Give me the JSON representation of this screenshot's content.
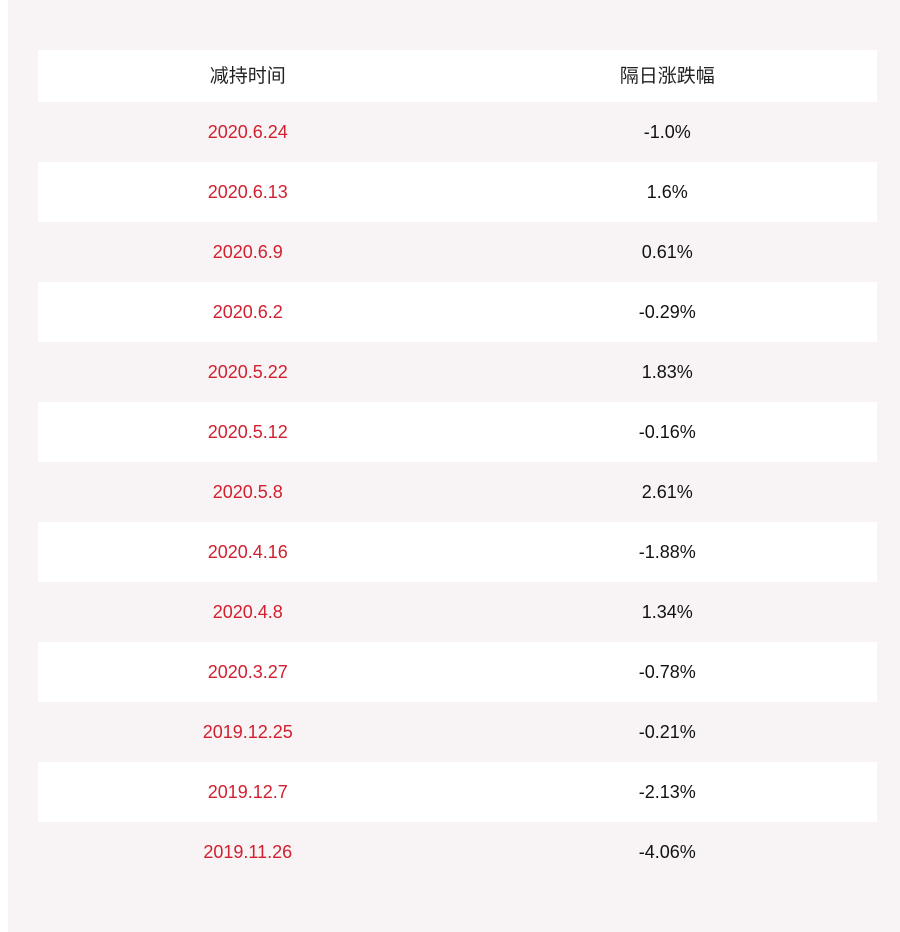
{
  "table": {
    "headers": [
      "减持时间",
      "隔日涨跌幅"
    ],
    "rows": [
      {
        "date": "2020.6.24",
        "change": "-1.0%"
      },
      {
        "date": "2020.6.13",
        "change": "1.6%"
      },
      {
        "date": "2020.6.9",
        "change": "0.61%"
      },
      {
        "date": "2020.6.2",
        "change": "-0.29%"
      },
      {
        "date": "2020.5.22",
        "change": "1.83%"
      },
      {
        "date": "2020.5.12",
        "change": "-0.16%"
      },
      {
        "date": "2020.5.8",
        "change": "2.61%"
      },
      {
        "date": "2020.4.16",
        "change": "-1.88%"
      },
      {
        "date": "2020.4.8",
        "change": "1.34%"
      },
      {
        "date": "2020.3.27",
        "change": "-0.78%"
      },
      {
        "date": "2019.12.25",
        "change": "-0.21%"
      },
      {
        "date": "2019.12.7",
        "change": "-2.13%"
      },
      {
        "date": "2019.11.26",
        "change": "-4.06%"
      }
    ]
  },
  "colors": {
    "background": "#f8f3f4",
    "row_alt": "#ffffff",
    "date_text": "#d1202f",
    "value_text": "#111111"
  }
}
